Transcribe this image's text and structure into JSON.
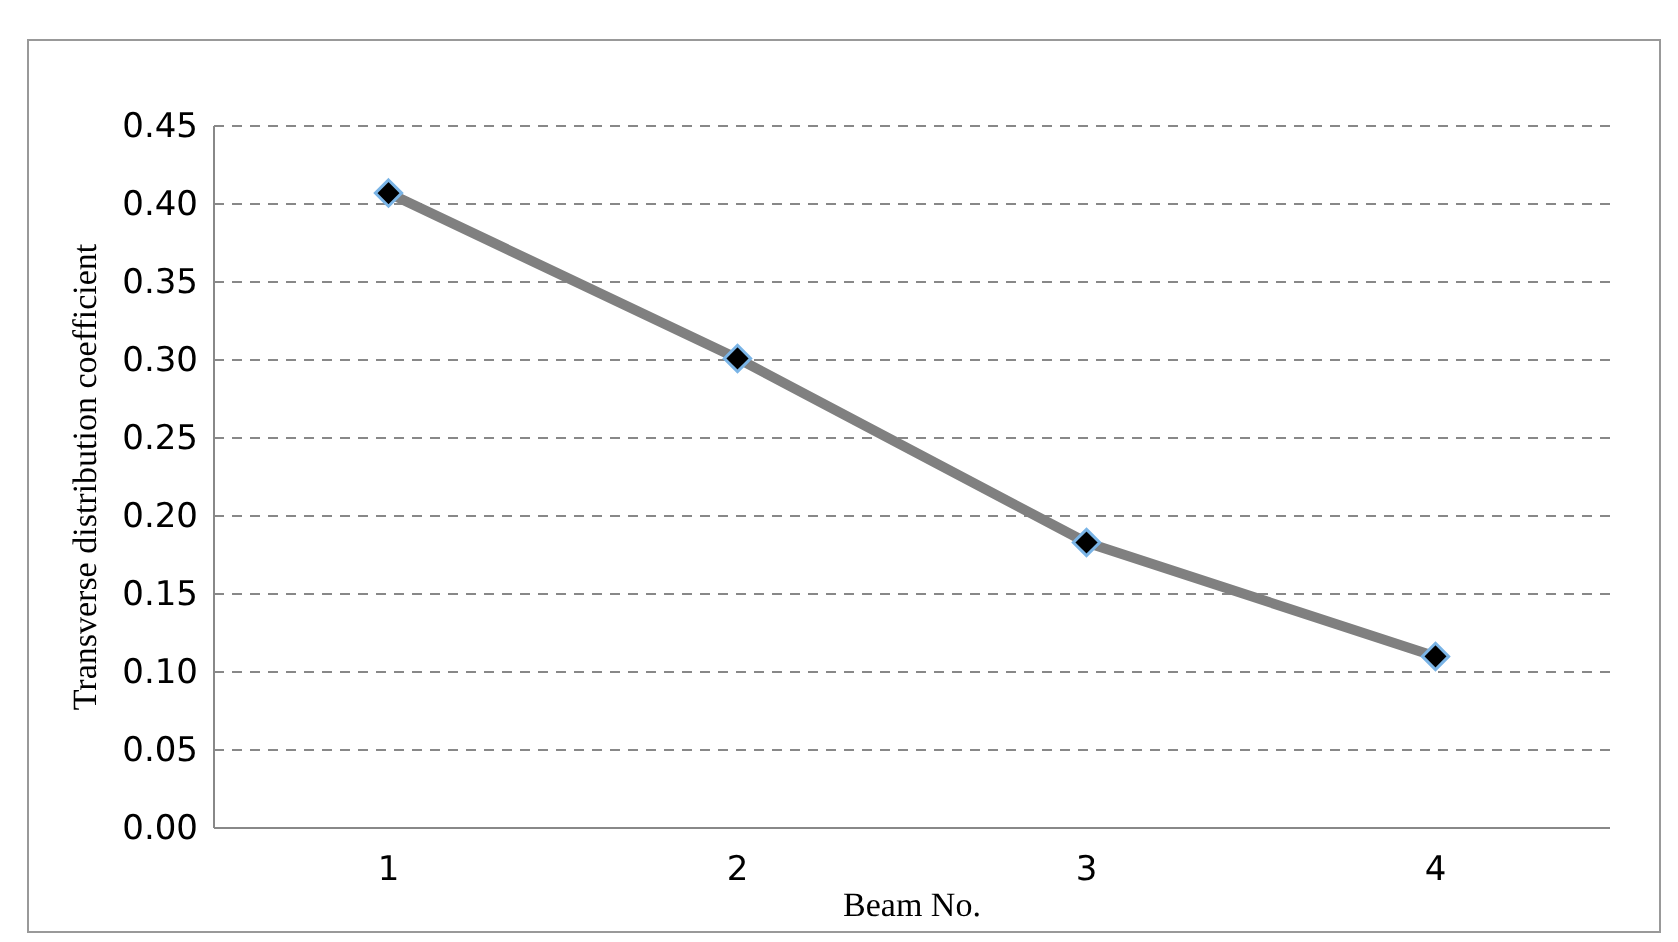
{
  "chart_data": {
    "type": "line",
    "xlabel": "Beam No.",
    "ylabel": "Transverse distribution coefficient",
    "categories": [
      "1",
      "2",
      "3",
      "4"
    ],
    "series": [
      {
        "color": "#808080",
        "values": [
          0.407,
          0.301,
          0.183,
          0.11
        ]
      }
    ],
    "ylim": [
      0,
      0.45
    ],
    "yticks": [
      {
        "value": 0,
        "label": "0.00"
      },
      {
        "value": 0.05,
        "label": "0.05"
      },
      {
        "value": 0.1,
        "label": "0.10"
      },
      {
        "value": 0.15,
        "label": "0.15"
      },
      {
        "value": 0.2,
        "label": "0.20"
      },
      {
        "value": 0.25,
        "label": "0.25"
      },
      {
        "value": 0.3,
        "label": "0.30"
      },
      {
        "value": 0.35,
        "label": "0.35"
      },
      {
        "value": 0.4,
        "label": "0.40"
      },
      {
        "value": 0.45,
        "label": "0.45"
      }
    ],
    "grid": "y",
    "marker": "diamond",
    "line_style": "solid"
  }
}
